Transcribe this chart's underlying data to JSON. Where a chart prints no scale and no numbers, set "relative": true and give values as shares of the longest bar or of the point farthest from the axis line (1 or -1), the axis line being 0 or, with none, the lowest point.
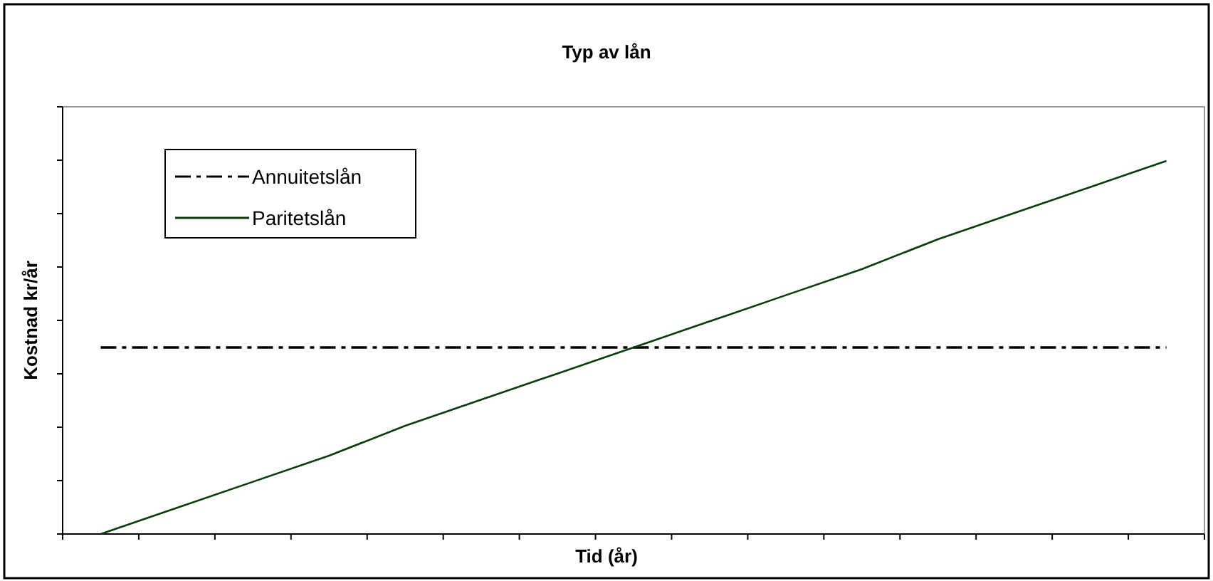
{
  "chart_data": {
    "type": "line",
    "title": "Typ av lån",
    "xlabel": "Tid (år)",
    "ylabel": "Kostnad kr/år",
    "relative": true,
    "categories": [
      null,
      null,
      null,
      null,
      null,
      null,
      null,
      null,
      null,
      null,
      null,
      null,
      null,
      null,
      null
    ],
    "legend": "top left",
    "marker": "none",
    "series": [
      {
        "name": "Annuitetslån",
        "color": "#000000",
        "line_style": "dashed",
        "values": [
          0.5,
          0.5,
          0.5,
          0.5,
          0.5,
          0.5,
          0.5,
          0.5,
          0.5,
          0.5,
          0.5,
          0.5,
          0.5,
          0.5,
          0.5
        ]
      },
      {
        "name": "Paritetslån",
        "color": "#0b3d0b",
        "line_style": "solid",
        "values": [
          0,
          0.07,
          0.14,
          0.21,
          0.29,
          0.36,
          0.43,
          0.5,
          0.57,
          0.64,
          0.71,
          0.79,
          0.86,
          0.93,
          1
        ]
      }
    ]
  }
}
